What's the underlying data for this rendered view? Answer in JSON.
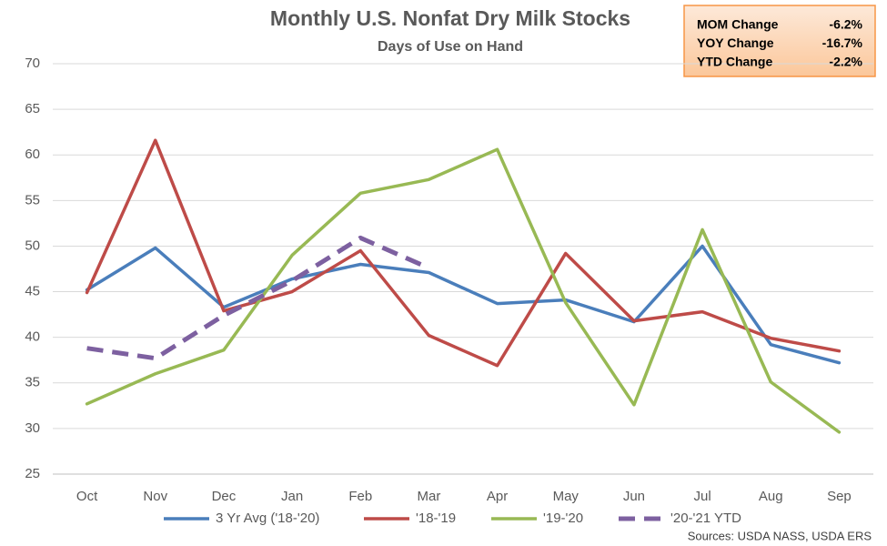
{
  "chart_data": {
    "type": "line",
    "title": "Monthly U.S. Nonfat Dry Milk Stocks",
    "subtitle": "Days of Use on Hand",
    "categories": [
      "Oct",
      "Nov",
      "Dec",
      "Jan",
      "Feb",
      "Mar",
      "Apr",
      "May",
      "Jun",
      "Jul",
      "Aug",
      "Sep"
    ],
    "series": [
      {
        "name": "3 Yr Avg ('18-'20)",
        "color": "#4a7ebb",
        "values": [
          45.2,
          49.8,
          43.3,
          46.4,
          48.0,
          47.1,
          43.7,
          44.1,
          41.7,
          50.0,
          39.2,
          37.2
        ]
      },
      {
        "name": "'18-'19",
        "color": "#be4b48",
        "values": [
          44.9,
          61.6,
          42.9,
          45.0,
          49.5,
          40.2,
          36.9,
          49.2,
          41.8,
          42.8,
          39.9,
          38.5
        ]
      },
      {
        "name": "'19-'20",
        "color": "#98b954",
        "values": [
          32.7,
          36.0,
          38.6,
          49.0,
          55.8,
          57.3,
          60.6,
          43.8,
          32.6,
          51.8,
          35.1,
          29.6
        ]
      },
      {
        "name": "'20-'21 YTD",
        "color": "#7d60a0",
        "dashed": true,
        "values": [
          38.8,
          37.7,
          42.4,
          46.2,
          50.9,
          47.6,
          null,
          null,
          null,
          null,
          null,
          null
        ]
      }
    ],
    "ylim": [
      25,
      70
    ],
    "yticks": [
      25,
      30,
      35,
      40,
      45,
      50,
      55,
      60,
      65,
      70
    ],
    "grid": true,
    "stats": [
      {
        "label": "MOM Change",
        "value": "-6.2%"
      },
      {
        "label": "YOY Change",
        "value": "-16.7%"
      },
      {
        "label": "YTD Change",
        "value": "-2.2%"
      }
    ],
    "source": "Sources: USDA NASS, USDA ERS"
  }
}
